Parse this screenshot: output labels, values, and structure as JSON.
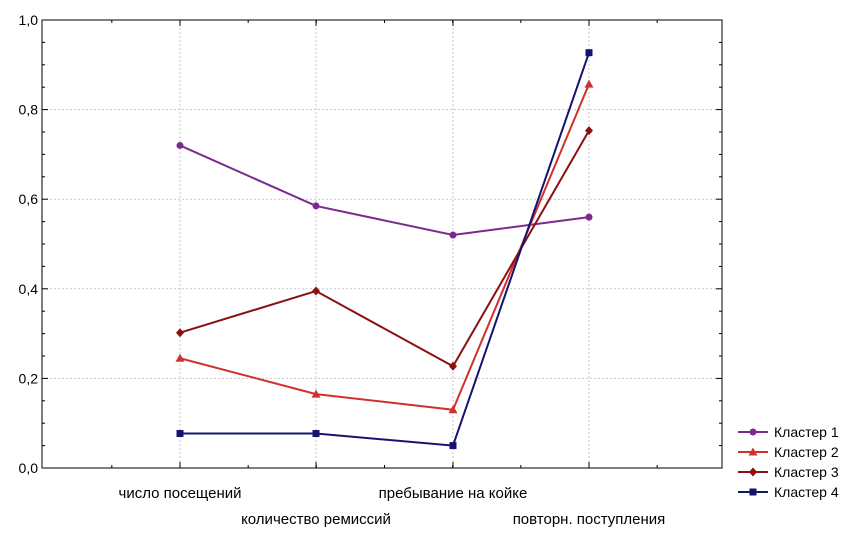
{
  "chart_data": {
    "type": "line",
    "title": "",
    "xlabel": "",
    "ylabel": "",
    "categories": [
      "число посещений",
      "количество ремиссий",
      "пребывание на койке",
      "повторн. поступления"
    ],
    "ylim": [
      0,
      1.0
    ],
    "y_ticks": [
      "0,0",
      "0,2",
      "0,4",
      "0,6",
      "0,8",
      "1,0"
    ],
    "grid": true,
    "legend_position": "bottom-right",
    "series": [
      {
        "name": "Кластер 1",
        "color": "#7b2a8e",
        "marker": "circle",
        "values": [
          0.72,
          0.585,
          0.52,
          0.56
        ]
      },
      {
        "name": "Кластер 2",
        "color": "#d03030",
        "marker": "triangle",
        "values": [
          0.245,
          0.165,
          0.13,
          0.857
        ]
      },
      {
        "name": "Кластер 3",
        "color": "#8b1010",
        "marker": "diamond",
        "values": [
          0.302,
          0.395,
          0.227,
          0.753
        ]
      },
      {
        "name": "Кластер 4",
        "color": "#14146e",
        "marker": "square",
        "values": [
          0.077,
          0.077,
          0.05,
          0.927
        ]
      }
    ]
  }
}
